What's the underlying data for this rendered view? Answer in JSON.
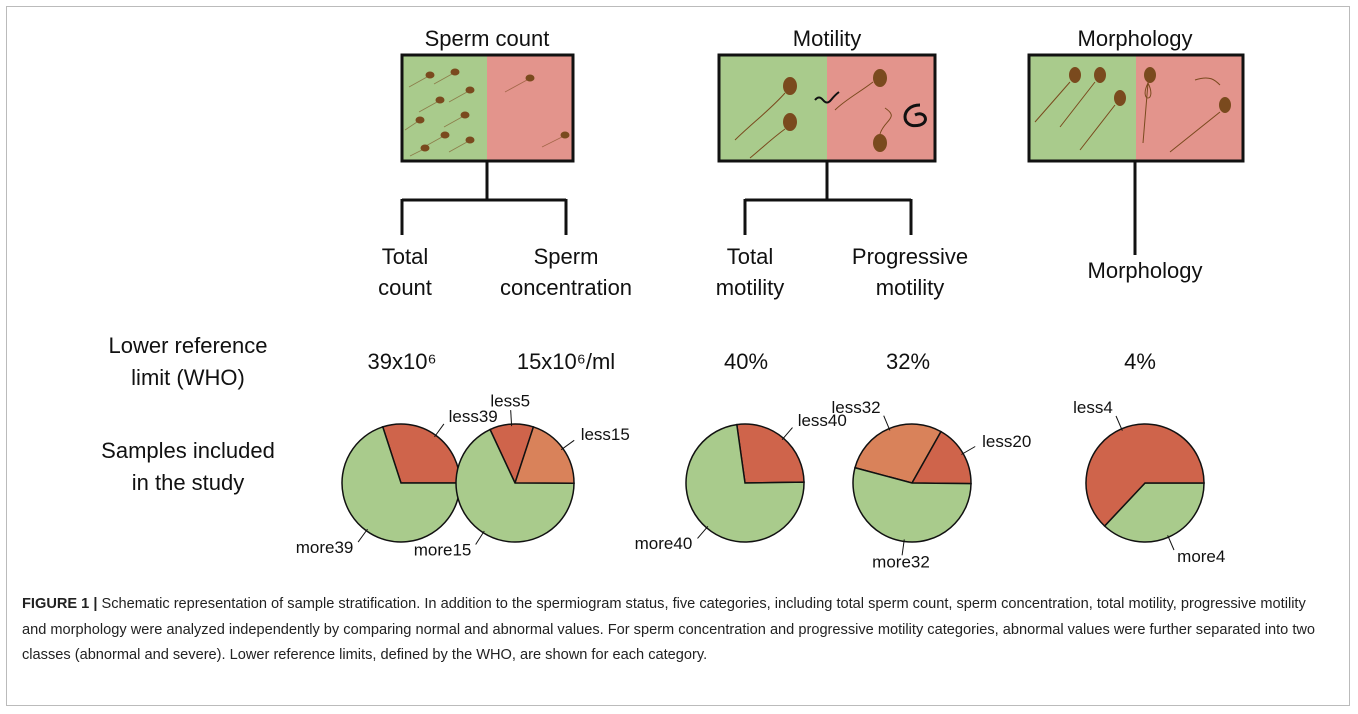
{
  "panels": [
    {
      "title": "Sperm count",
      "branches": [
        {
          "lines": [
            "Total",
            "count"
          ],
          "reference": "39x10⁶"
        },
        {
          "lines": [
            "Sperm",
            "concentration"
          ],
          "reference": "15x10⁶/ml"
        }
      ]
    },
    {
      "title": "Motility",
      "branches": [
        {
          "lines": [
            "Total",
            "motility"
          ],
          "reference": "40%"
        },
        {
          "lines": [
            "Progressive",
            "motility"
          ],
          "reference": "32%"
        }
      ]
    },
    {
      "title": "Morphology",
      "branches": [
        {
          "lines": [
            "Morphology"
          ],
          "reference": "4%"
        }
      ]
    }
  ],
  "row_labels": {
    "reference": [
      "Lower reference",
      "limit (WHO)"
    ],
    "samples": [
      "Samples included",
      "in the study"
    ]
  },
  "pies": [
    {
      "slices": [
        {
          "label": "less39",
          "value": 30,
          "color": "#cf644b"
        },
        {
          "label": "more39",
          "value": 70,
          "color": "#a9cb8c"
        }
      ]
    },
    {
      "slices": [
        {
          "label": "less5",
          "value": 12,
          "color": "#cf644b"
        },
        {
          "label": "less15",
          "value": 20,
          "color": "#d9825a"
        },
        {
          "label": "more15",
          "value": 68,
          "color": "#a9cb8c"
        }
      ]
    },
    {
      "slices": [
        {
          "label": "less40",
          "value": 27,
          "color": "#cf644b"
        },
        {
          "label": "more40",
          "value": 73,
          "color": "#a9cb8c"
        }
      ]
    },
    {
      "slices": [
        {
          "label": "less32",
          "value": 29,
          "color": "#d9825a"
        },
        {
          "label": "less20",
          "value": 17,
          "color": "#cf644b"
        },
        {
          "label": "more32",
          "value": 54,
          "color": "#a9cb8c"
        }
      ]
    },
    {
      "slices": [
        {
          "label": "more4",
          "value": 37,
          "color": "#a9cb8c"
        },
        {
          "label": "less4",
          "value": 63,
          "color": "#cf644b"
        }
      ]
    }
  ],
  "caption": {
    "label": "FIGURE 1 |",
    "text": "Schematic representation of sample stratification. In addition to the spermiogram status, five categories, including total sperm count, sperm concentration, total motility, progressive motility and morphology were analyzed independently by comparing normal and abnormal values. For sperm concentration and progressive motility categories, abnormal values were further separated into two classes (abnormal and severe). Lower reference limits, defined by the WHO, are shown for each category."
  }
}
